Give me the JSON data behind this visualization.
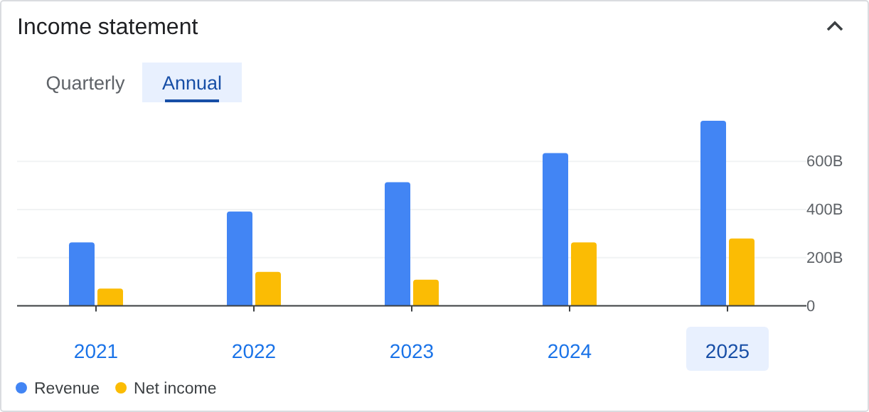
{
  "chart_data": {
    "type": "bar",
    "title": "Income statement",
    "annotations": [
      "Quarterly",
      "Annual"
    ],
    "categories": [
      "2021",
      "2022",
      "2023",
      "2024",
      "2025"
    ],
    "series": [
      {
        "name": "Revenue",
        "color": "#4285f4",
        "values": [
          264,
          392,
          514,
          635,
          769
        ]
      },
      {
        "name": "Net income",
        "color": "#fbbc04",
        "values": [
          72,
          141,
          109,
          264,
          280
        ]
      }
    ],
    "yticks": [
      {
        "value": 0,
        "label": "0"
      },
      {
        "value": 200,
        "label": "200B"
      },
      {
        "value": 400,
        "label": "400B"
      },
      {
        "value": 600,
        "label": "600B"
      }
    ],
    "ylim": [
      0,
      769
    ],
    "grid": "y",
    "legend": "bottom left"
  }
}
